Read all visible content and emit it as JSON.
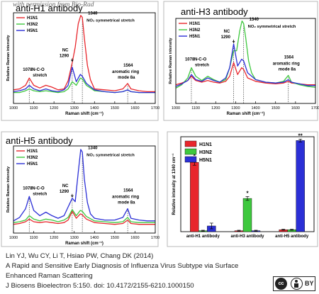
{
  "watermark": "with permission from Bio-Rad",
  "caption": {
    "line1": "Lin YJ, Wu CY, Li T, Hsiao PW, Chang DK (2014)",
    "line2": "A Rapid and Sensitive Early Diagnosis of Influenza Virus Subtype via Surface",
    "line3": "Enhanced Raman Scattering",
    "line4": "J Biosens Bioelectron 5:150. doi: 10.4172/2155-6210.1000150"
  },
  "license_badge": "BY",
  "colors": {
    "H1N1": "#e8262c",
    "H3N2": "#3ec83e",
    "H5N1": "#2b2fd6"
  },
  "chart_data": [
    {
      "type": "line",
      "panel": "top-left",
      "title": "anti-H1 antibody",
      "xlabel": "Raman shift (cm⁻¹)",
      "ylabel": "Relative Raman intensity",
      "xlim": [
        1000,
        1700
      ],
      "ylim": [
        0,
        1
      ],
      "xticks": [
        1000,
        1100,
        1200,
        1300,
        1400,
        1500,
        1600,
        1700
      ],
      "legend": [
        "H1N1",
        "H3N2",
        "H5N1"
      ],
      "legend_position": "top-left",
      "dashed_markers": [
        1078,
        1290,
        1340,
        1564
      ],
      "annotations": {
        "a1340": "1340",
        "no2": "NO₂ symmetrical stretch",
        "nc": "NC",
        "a1290": "1290",
        "a1078": "1078",
        "nco": "N-C-O",
        "stretch": "stretch",
        "a1564": "1564",
        "aromatic": "aromatic ring",
        "mode": "mode 8a"
      },
      "series": [
        {
          "name": "H1N1",
          "x": [
            1000,
            1030,
            1060,
            1078,
            1100,
            1130,
            1160,
            1190,
            1220,
            1250,
            1270,
            1290,
            1305,
            1320,
            1332,
            1340,
            1350,
            1365,
            1380,
            1400,
            1450,
            1500,
            1540,
            1564,
            1580,
            1620,
            1660,
            1700
          ],
          "y": [
            0.15,
            0.16,
            0.2,
            0.28,
            0.2,
            0.17,
            0.2,
            0.18,
            0.15,
            0.16,
            0.25,
            0.45,
            0.62,
            0.88,
            0.97,
            0.95,
            0.72,
            0.42,
            0.26,
            0.16,
            0.15,
            0.14,
            0.16,
            0.22,
            0.16,
            0.14,
            0.13,
            0.13
          ]
        },
        {
          "name": "H3N2",
          "x": [
            1000,
            1030,
            1060,
            1078,
            1100,
            1130,
            1160,
            1190,
            1220,
            1250,
            1270,
            1290,
            1310,
            1330,
            1340,
            1360,
            1400,
            1450,
            1500,
            1540,
            1564,
            1580,
            1620,
            1660,
            1700
          ],
          "y": [
            0.12,
            0.12,
            0.14,
            0.16,
            0.14,
            0.13,
            0.14,
            0.13,
            0.12,
            0.13,
            0.16,
            0.24,
            0.2,
            0.28,
            0.27,
            0.2,
            0.14,
            0.13,
            0.12,
            0.13,
            0.15,
            0.13,
            0.12,
            0.12,
            0.12
          ]
        },
        {
          "name": "H5N1",
          "x": [
            1000,
            1030,
            1060,
            1078,
            1100,
            1130,
            1160,
            1190,
            1220,
            1250,
            1270,
            1290,
            1310,
            1330,
            1340,
            1360,
            1400,
            1450,
            1500,
            1540,
            1564,
            1580,
            1620,
            1660,
            1700
          ],
          "y": [
            0.13,
            0.14,
            0.16,
            0.2,
            0.16,
            0.14,
            0.16,
            0.14,
            0.13,
            0.15,
            0.2,
            0.4,
            0.24,
            0.32,
            0.3,
            0.22,
            0.15,
            0.13,
            0.12,
            0.13,
            0.15,
            0.13,
            0.12,
            0.12,
            0.12
          ]
        }
      ]
    },
    {
      "type": "line",
      "panel": "top-right",
      "title": "anti-H3 antibody",
      "xlabel": "Raman shift (cm⁻¹)",
      "ylabel": "Relative Raman intensity",
      "xlim": [
        1000,
        1700
      ],
      "ylim": [
        0,
        1
      ],
      "xticks": [
        1000,
        1100,
        1200,
        1300,
        1400,
        1500,
        1600,
        1700
      ],
      "legend": [
        "H1N1",
        "H3N2",
        "H5N1"
      ],
      "legend_position": "top-left",
      "dashed_markers": [
        1078,
        1290,
        1340,
        1564
      ],
      "annotations": {
        "a1340": "1340",
        "no2": "NO₂ symmetrical stretch",
        "nc": "NC",
        "a1290": "1290",
        "a1078": "1078",
        "nco": "N-C-O",
        "stretch": "stretch",
        "a1564": "1564",
        "aromatic": "aromatic ring",
        "mode": "mode 8a"
      },
      "series": [
        {
          "name": "H1N1",
          "x": [
            1000,
            1030,
            1060,
            1078,
            1100,
            1130,
            1160,
            1190,
            1220,
            1250,
            1270,
            1290,
            1310,
            1330,
            1340,
            1360,
            1400,
            1450,
            1500,
            1540,
            1564,
            1580,
            1620,
            1660,
            1700
          ],
          "y": [
            0.22,
            0.24,
            0.27,
            0.32,
            0.27,
            0.25,
            0.27,
            0.25,
            0.24,
            0.26,
            0.32,
            0.48,
            0.34,
            0.42,
            0.4,
            0.3,
            0.26,
            0.24,
            0.23,
            0.24,
            0.26,
            0.24,
            0.23,
            0.22,
            0.22
          ]
        },
        {
          "name": "H3N2",
          "x": [
            1000,
            1030,
            1060,
            1078,
            1100,
            1130,
            1160,
            1190,
            1220,
            1250,
            1270,
            1290,
            1305,
            1320,
            1332,
            1340,
            1350,
            1365,
            1380,
            1400,
            1450,
            1500,
            1540,
            1564,
            1580,
            1620,
            1660,
            1700
          ],
          "y": [
            0.18,
            0.22,
            0.3,
            0.42,
            0.32,
            0.27,
            0.32,
            0.28,
            0.25,
            0.28,
            0.42,
            0.62,
            0.62,
            0.85,
            0.97,
            0.94,
            0.78,
            0.5,
            0.36,
            0.28,
            0.25,
            0.24,
            0.26,
            0.33,
            0.25,
            0.22,
            0.2,
            0.19
          ]
        },
        {
          "name": "H5N1",
          "x": [
            1000,
            1030,
            1060,
            1078,
            1100,
            1130,
            1160,
            1190,
            1220,
            1250,
            1270,
            1290,
            1310,
            1330,
            1340,
            1360,
            1400,
            1450,
            1500,
            1540,
            1564,
            1580,
            1620,
            1660,
            1700
          ],
          "y": [
            0.2,
            0.23,
            0.27,
            0.34,
            0.28,
            0.26,
            0.3,
            0.27,
            0.25,
            0.3,
            0.42,
            0.7,
            0.44,
            0.52,
            0.5,
            0.36,
            0.28,
            0.25,
            0.24,
            0.25,
            0.28,
            0.25,
            0.23,
            0.21,
            0.21
          ]
        }
      ]
    },
    {
      "type": "line",
      "panel": "bottom-left",
      "title": "anti-H5 antibody",
      "xlabel": "Raman shift (cm⁻¹)",
      "ylabel": "Relative Raman intensity",
      "xlim": [
        1000,
        1700
      ],
      "ylim": [
        0,
        1
      ],
      "xticks": [
        1000,
        1100,
        1200,
        1300,
        1400,
        1500,
        1600,
        1700
      ],
      "legend": [
        "H1N1",
        "H3N2",
        "H5N1"
      ],
      "legend_position": "top-left",
      "dashed_markers": [
        1078,
        1290,
        1340,
        1564
      ],
      "annotations": {
        "a1340": "1340",
        "no2": "NO₂ symmetrical stretch",
        "nc": "NC",
        "a1290": "1290",
        "a1078": "1078",
        "nco": "N-C-O",
        "stretch": "stretch",
        "a1564": "1564",
        "aromatic": "aromatic ring",
        "mode": "mode 8a"
      },
      "series": [
        {
          "name": "H1N1",
          "x": [
            1000,
            1030,
            1060,
            1078,
            1100,
            1130,
            1160,
            1190,
            1220,
            1250,
            1270,
            1290,
            1310,
            1330,
            1340,
            1360,
            1400,
            1450,
            1500,
            1540,
            1564,
            1580,
            1620,
            1660,
            1700
          ],
          "y": [
            0.1,
            0.11,
            0.13,
            0.16,
            0.13,
            0.12,
            0.13,
            0.12,
            0.11,
            0.12,
            0.15,
            0.25,
            0.17,
            0.22,
            0.21,
            0.16,
            0.12,
            0.11,
            0.1,
            0.11,
            0.15,
            0.11,
            0.1,
            0.1,
            0.1
          ]
        },
        {
          "name": "H3N2",
          "x": [
            1000,
            1030,
            1060,
            1078,
            1100,
            1130,
            1160,
            1190,
            1220,
            1250,
            1270,
            1290,
            1310,
            1330,
            1340,
            1360,
            1400,
            1450,
            1500,
            1540,
            1564,
            1580,
            1620,
            1660,
            1700
          ],
          "y": [
            0.12,
            0.13,
            0.15,
            0.2,
            0.16,
            0.14,
            0.16,
            0.15,
            0.13,
            0.15,
            0.18,
            0.27,
            0.2,
            0.26,
            0.25,
            0.19,
            0.14,
            0.13,
            0.12,
            0.13,
            0.18,
            0.13,
            0.12,
            0.12,
            0.12
          ]
        },
        {
          "name": "H5N1",
          "x": [
            1000,
            1030,
            1060,
            1078,
            1100,
            1130,
            1160,
            1190,
            1220,
            1250,
            1270,
            1290,
            1305,
            1320,
            1332,
            1340,
            1350,
            1365,
            1380,
            1400,
            1450,
            1500,
            1540,
            1564,
            1580,
            1620,
            1660,
            1700
          ],
          "y": [
            0.14,
            0.18,
            0.28,
            0.42,
            0.26,
            0.2,
            0.24,
            0.2,
            0.17,
            0.2,
            0.3,
            0.4,
            0.36,
            0.7,
            0.96,
            0.93,
            0.62,
            0.35,
            0.22,
            0.17,
            0.15,
            0.15,
            0.18,
            0.28,
            0.17,
            0.15,
            0.14,
            0.14
          ]
        }
      ]
    },
    {
      "type": "bar",
      "panel": "bottom-right",
      "title": "",
      "xlabel": "",
      "ylabel": "Relative intensity at 1340 cm⁻¹",
      "ylim": [
        0,
        1
      ],
      "categories": [
        "anti-H1 antibody",
        "anti-H3 antibody",
        "anti-H5 antibody"
      ],
      "legend": [
        "H1N1",
        "H3N2",
        "H5N1"
      ],
      "legend_position": "top-left",
      "series": [
        {
          "name": "H1N1",
          "values": [
            0.73,
            0.01,
            0.02
          ],
          "errors": [
            0.03,
            0.005,
            0.005
          ]
        },
        {
          "name": "H3N2",
          "values": [
            0.01,
            0.35,
            0.02
          ],
          "errors": [
            0.005,
            0.02,
            0.005
          ]
        },
        {
          "name": "H5N1",
          "values": [
            0.06,
            0.01,
            0.96
          ],
          "errors": [
            0.03,
            0.005,
            0.015
          ]
        }
      ],
      "significance": [
        {
          "category": 0,
          "series": 0,
          "mark": "*"
        },
        {
          "category": 1,
          "series": 1,
          "mark": "*"
        },
        {
          "category": 2,
          "series": 2,
          "mark": "**"
        }
      ]
    }
  ]
}
